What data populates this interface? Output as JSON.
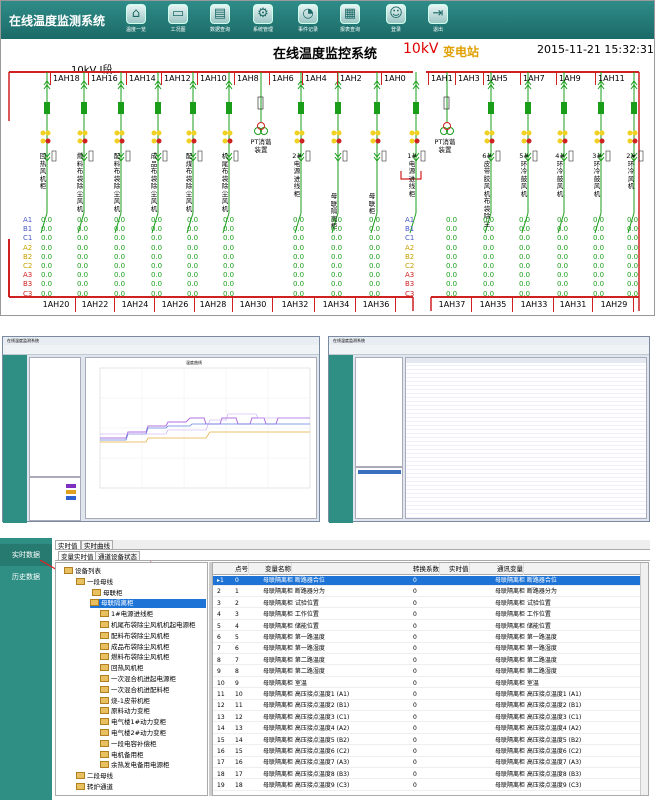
{
  "top": {
    "app_title": "在线温度监测系统",
    "toolbar": [
      {
        "label": "温度一览",
        "icon": "home-icon"
      },
      {
        "label": "工况图",
        "icon": "monitor-icon"
      },
      {
        "label": "数据查询",
        "icon": "database-icon"
      },
      {
        "label": "系统管理",
        "icon": "gear-icon"
      },
      {
        "label": "事件记录",
        "icon": "event-icon"
      },
      {
        "label": "报表查询",
        "icon": "report-icon"
      },
      {
        "label": "登录",
        "icon": "user-icon"
      },
      {
        "label": "退出",
        "icon": "exit-icon"
      }
    ],
    "system_title": "在线温度监控系统",
    "voltage": "10kV",
    "substation": "变电站",
    "datetime": "2015-11-21 15:32:31",
    "segment": "10kV I段",
    "top_cabinets": [
      "1AH18",
      "1AH16",
      "1AH14",
      "1AH12",
      "1AH10",
      "1AH8",
      "1AH6",
      "1AH4",
      "1AH2",
      "1AH0",
      "1AH1",
      "1AH3",
      "1AH5",
      "1AH7",
      "1AH9",
      "1AH11"
    ],
    "feeders": [
      "回热风机柜",
      "燃料布袋除尘风机",
      "配料布袋除尘风机",
      "成品布袋除尘风机",
      "配煤布袋除尘风机",
      "机尾布袋除尘风机",
      "PT消谐装置",
      "2#电源进线柜",
      "母联隔离柜",
      "母联柜",
      "1#电源进线柜",
      "PT消谐装置",
      "6#皮带胶风机布袋除尘",
      "5#环冷鼓风机",
      "4#环冷鼓风机",
      "3#环冷鼓风机",
      "2#环冷风机"
    ],
    "phases": [
      "A1",
      "B1",
      "C1",
      "A2",
      "B2",
      "C2",
      "A3",
      "B3",
      "C3"
    ],
    "reading": "0.0",
    "bottom_cabinets": [
      "1AH20",
      "1AH22",
      "1AH24",
      "1AH26",
      "1AH28",
      "1AH30",
      "1AH32",
      "1AH34",
      "1AH36",
      "1AH37",
      "1AH35",
      "1AH33",
      "1AH31",
      "1AH29"
    ]
  },
  "mid_left": {
    "title": "在线温度监测系统",
    "chart_title": "温度曲线"
  },
  "mid_right": {
    "title": "在线温度监测系统"
  },
  "bottom": {
    "nav": [
      "实时数据",
      "历史数据"
    ],
    "tabs_top": [
      "实时值",
      "实时曲线"
    ],
    "tabs_sub": [
      "变量实时值",
      "通道设备状态"
    ],
    "tree": [
      "设备列表",
      "一段母线",
      "母联柜",
      "母联隔离柜",
      "1#电源进线柜",
      "机尾布袋除尘风机机起电源柜",
      "配料布袋除尘风机柜",
      "成品布袋除尘风机柜",
      "燃料布袋除尘风机柜",
      "回热风机柜",
      "一次混合机进起电源柜",
      "一次混合机进配料柜",
      "烧-1皮带机柜",
      "原料动力变柜",
      "电气楼1#动力变柜",
      "电气楼2#动力变柜",
      "一段电容补偿柜",
      "电机备用柜",
      "余热发电备用电源柜",
      "二段母线",
      "转炉通道"
    ],
    "columns": [
      "点号",
      "变量名称",
      "转换系数",
      "实时值",
      "通讯变量"
    ],
    "rows": [
      [
        "0",
        "母联隔离柜 断路器合位",
        "0",
        "母联隔离柜 断路器合位"
      ],
      [
        "1",
        "母联隔离柜 断路器分为",
        "0",
        "母联隔离柜 断路器分为"
      ],
      [
        "2",
        "母联隔离柜 试验位置",
        "0",
        "母联隔离柜 试验位置"
      ],
      [
        "3",
        "母联隔离柜 工作位置",
        "0",
        "母联隔离柜 工作位置"
      ],
      [
        "4",
        "母联隔离柜 储能位置",
        "0",
        "母联隔离柜 储能位置"
      ],
      [
        "5",
        "母联隔离柜 第一路温度",
        "0",
        "母联隔离柜 第一路温度"
      ],
      [
        "6",
        "母联隔离柜 第一路湿度",
        "0",
        "母联隔离柜 第一路湿度"
      ],
      [
        "7",
        "母联隔离柜 第二路温度",
        "0",
        "母联隔离柜 第二路温度"
      ],
      [
        "8",
        "母联隔离柜 第二路湿度",
        "0",
        "母联隔离柜 第二路湿度"
      ],
      [
        "9",
        "母联隔离柜 室温",
        "0",
        "母联隔离柜 室温"
      ],
      [
        "10",
        "母联隔离柜 高压接点温度1 (A1)",
        "0",
        "母联隔离柜 高压接点温度1 (A1)"
      ],
      [
        "11",
        "母联隔离柜 高压接点温度2 (B1)",
        "0",
        "母联隔离柜 高压接点温度2 (B1)"
      ],
      [
        "12",
        "母联隔离柜 高压接点温度3 (C1)",
        "0",
        "母联隔离柜 高压接点温度3 (C1)"
      ],
      [
        "13",
        "母联隔离柜 高压接点温度4 (A2)",
        "0",
        "母联隔离柜 高压接点温度4 (A2)"
      ],
      [
        "14",
        "母联隔离柜 高压接点温度5 (B2)",
        "0",
        "母联隔离柜 高压接点温度5 (B2)"
      ],
      [
        "15",
        "母联隔离柜 高压接点温度6 (C2)",
        "0",
        "母联隔离柜 高压接点温度6 (C2)"
      ],
      [
        "16",
        "母联隔离柜 高压接点温度7 (A3)",
        "0",
        "母联隔离柜 高压接点温度7 (A3)"
      ],
      [
        "17",
        "母联隔离柜 高压接点温度8 (B3)",
        "0",
        "母联隔离柜 高压接点温度8 (B3)"
      ],
      [
        "18",
        "母联隔离柜 高压接点温度9 (C3)",
        "0",
        "母联隔离柜 高压接点温度9 (C3)"
      ]
    ]
  }
}
